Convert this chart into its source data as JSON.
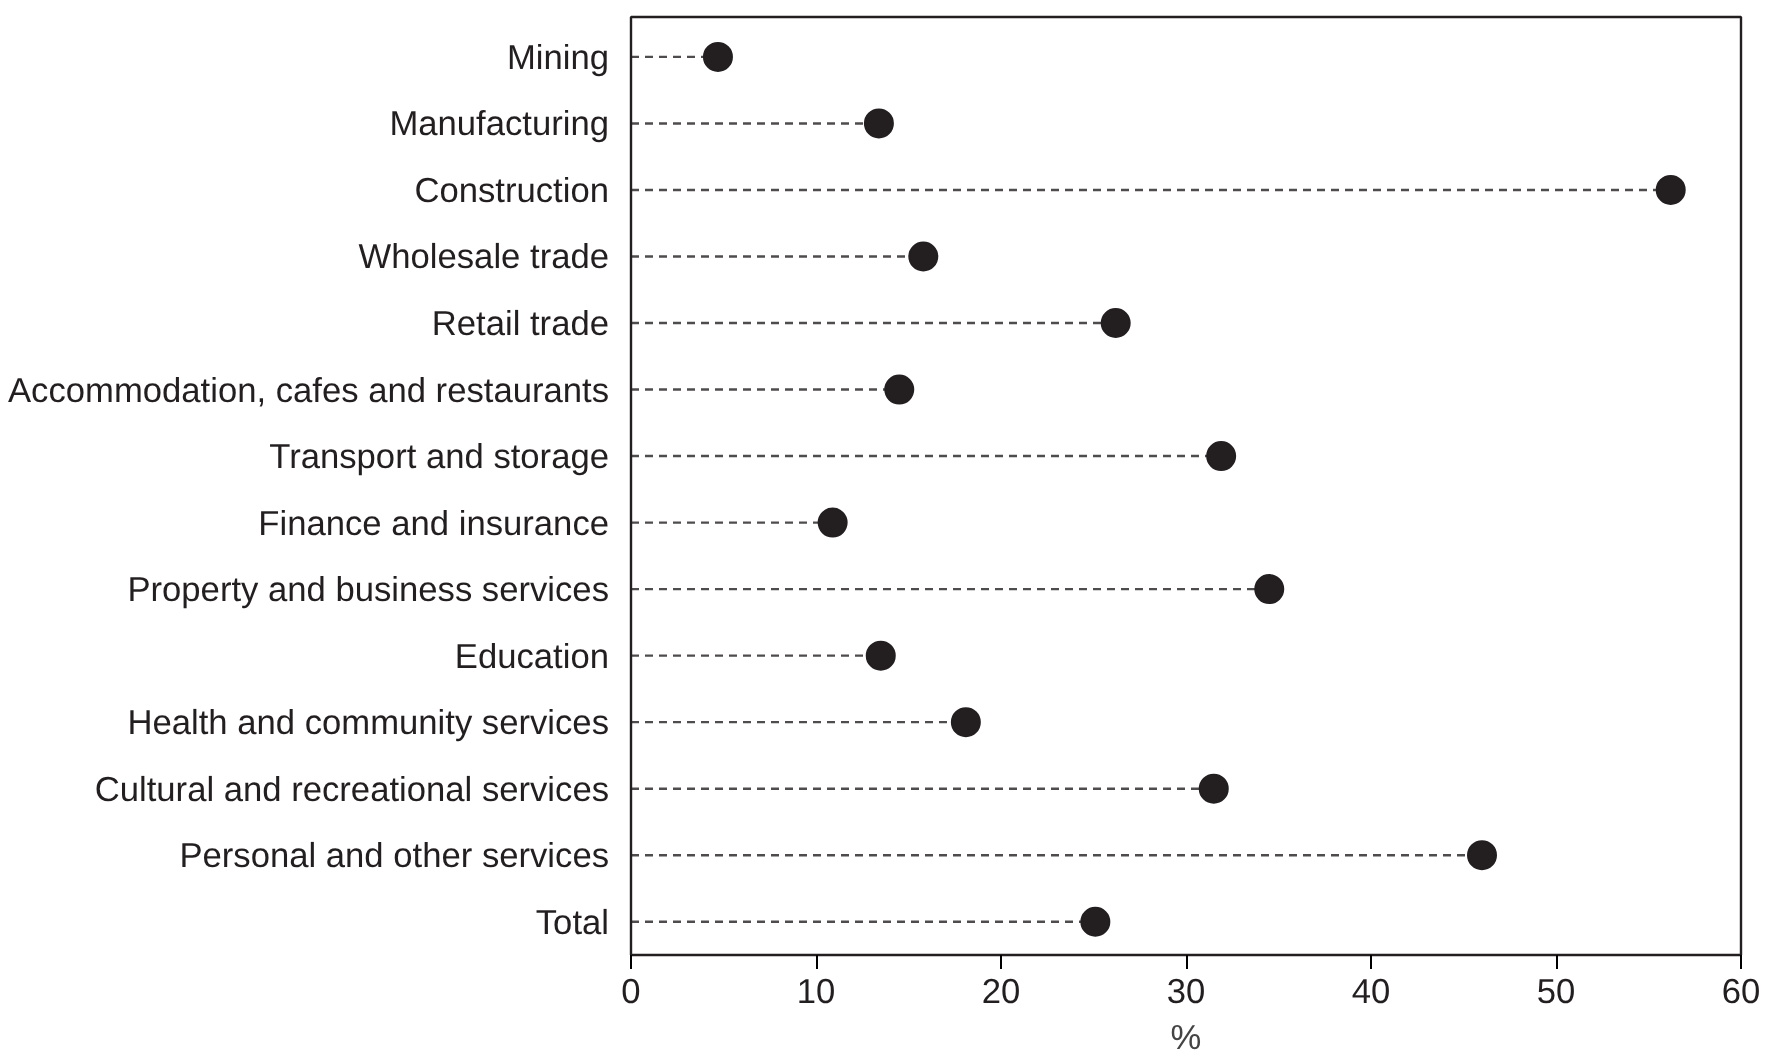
{
  "chart_data": {
    "type": "lollipop",
    "orientation": "horizontal",
    "xlabel": "%",
    "categories": [
      "Mining",
      "Manufacturing",
      "Construction",
      "Wholesale trade",
      "Retail trade",
      "Accommodation, cafes and restaurants",
      "Transport and storage",
      "Finance and insurance",
      "Property and business services",
      "Education",
      "Health and community services",
      "Cultural and recreational services",
      "Personal and other services",
      "Total"
    ],
    "values": [
      4.7,
      13.4,
      56.2,
      15.8,
      26.2,
      14.5,
      31.9,
      10.9,
      34.5,
      13.5,
      18.1,
      31.5,
      46.0,
      25.1
    ],
    "color": "#231f20",
    "xlim": [
      0,
      60
    ],
    "xticks": [
      0,
      10,
      20,
      30,
      40,
      50,
      60
    ],
    "grid": false,
    "marker": "circle",
    "line_style": "dashed"
  }
}
